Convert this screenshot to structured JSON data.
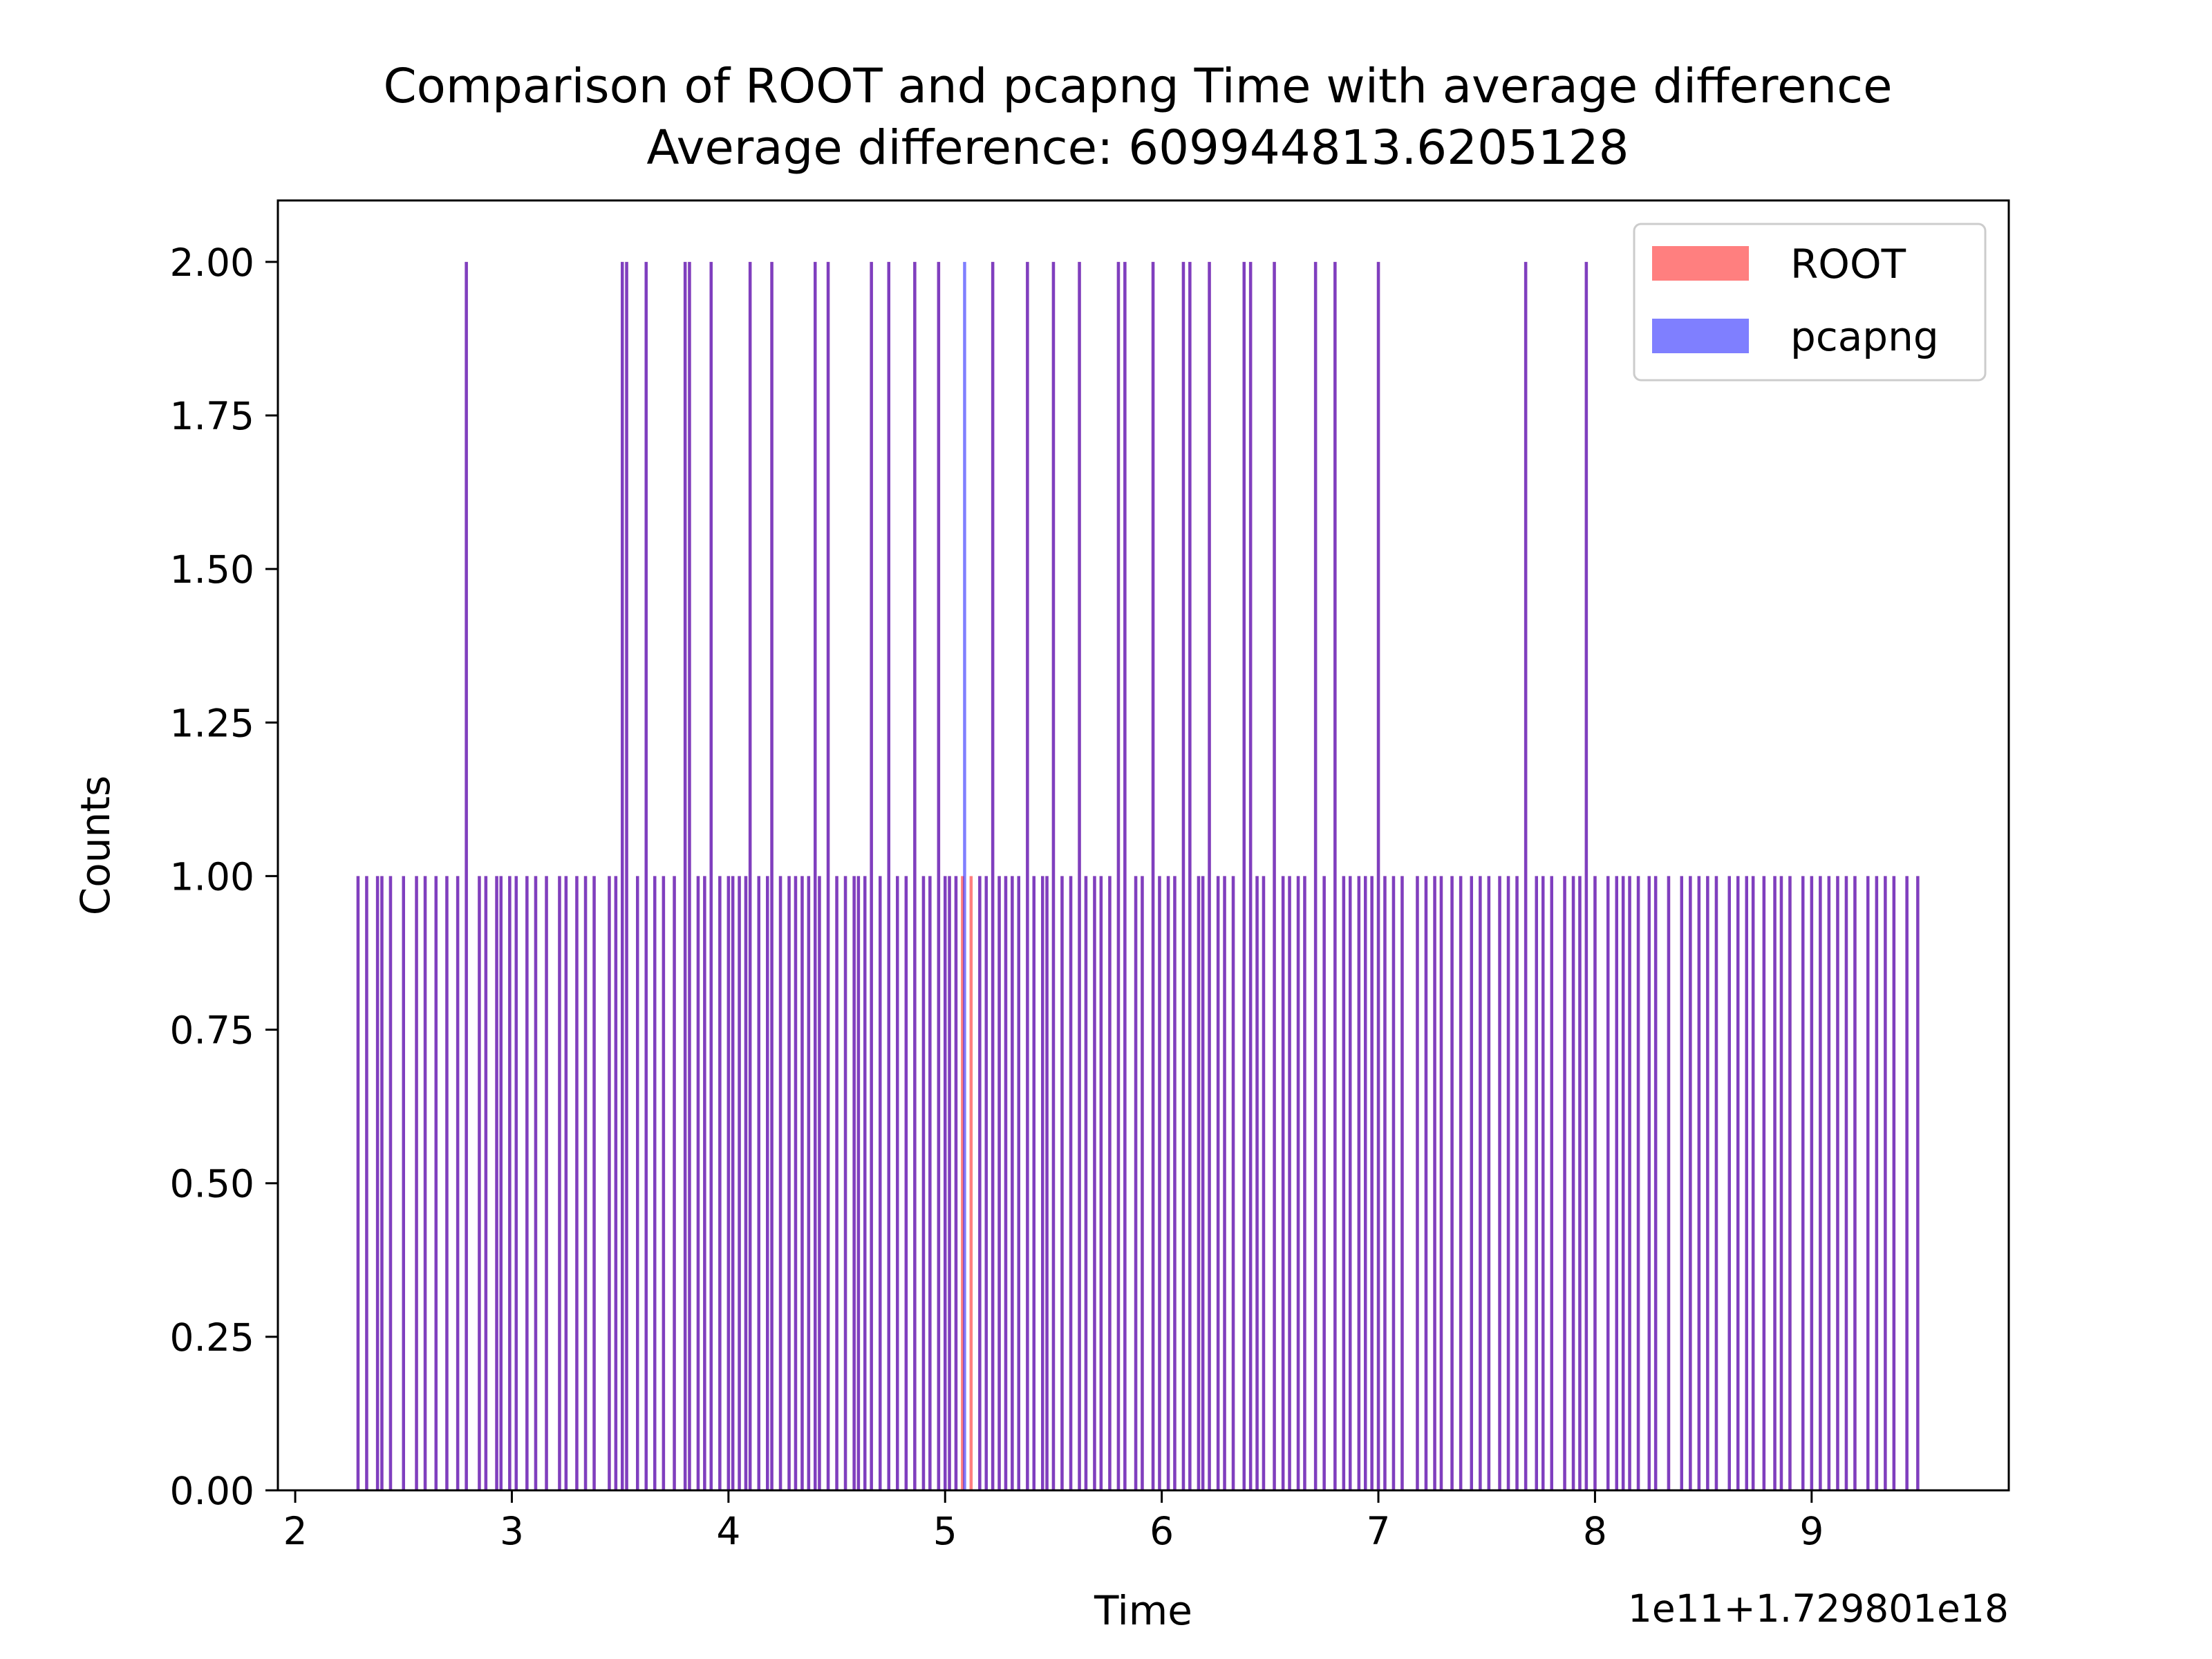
{
  "chart_data": {
    "type": "bar",
    "title": "Comparison of ROOT and pcapng Time with average difference",
    "subtitle": "Average difference: 609944813.6205128",
    "xlabel": "Time",
    "ylabel": "Counts",
    "offset_text": "1e11+1.729801e18",
    "xlim": [
      1.92,
      9.91
    ],
    "ylim": [
      0,
      2.1
    ],
    "xticks": [
      2,
      3,
      4,
      5,
      6,
      7,
      8,
      9
    ],
    "xtick_labels": [
      "2",
      "3",
      "4",
      "5",
      "6",
      "7",
      "8",
      "9"
    ],
    "yticks": [
      0,
      0.25,
      0.5,
      0.75,
      1.0,
      1.25,
      1.5,
      1.75,
      2.0
    ],
    "ytick_labels": [
      "0.00",
      "0.25",
      "0.50",
      "0.75",
      "1.00",
      "1.25",
      "1.50",
      "1.75",
      "2.00"
    ],
    "grid": false,
    "legend_position": "top-right",
    "bin_width": 0.0144,
    "series": [
      {
        "name": "ROOT",
        "color": "#ff0000",
        "alpha": 0.5,
        "bins_count_2": [
          2.79,
          3.51,
          3.53,
          3.62,
          3.8,
          3.82,
          3.92,
          4.1,
          4.2,
          4.4,
          4.46,
          4.66,
          4.74,
          4.86,
          4.97,
          5.22,
          5.38,
          5.5,
          5.62,
          5.8,
          5.83,
          5.96,
          6.1,
          6.13,
          6.22,
          6.38,
          6.41,
          6.52,
          6.71,
          6.8,
          7.0,
          7.68,
          7.96
        ],
        "bins_count_1": [
          2.29,
          2.33,
          2.38,
          2.4,
          2.44,
          2.5,
          2.56,
          2.6,
          2.65,
          2.7,
          2.75,
          2.85,
          2.88,
          2.93,
          2.95,
          2.99,
          3.02,
          3.07,
          3.11,
          3.16,
          3.22,
          3.25,
          3.3,
          3.34,
          3.38,
          3.45,
          3.48,
          3.58,
          3.66,
          3.7,
          3.75,
          3.86,
          3.89,
          3.96,
          4.0,
          4.02,
          4.05,
          4.08,
          4.14,
          4.18,
          4.24,
          4.28,
          4.31,
          4.34,
          4.37,
          4.42,
          4.5,
          4.54,
          4.58,
          4.6,
          4.63,
          4.7,
          4.78,
          4.82,
          4.9,
          4.93,
          5.0,
          5.02,
          5.05,
          5.08,
          5.12,
          5.16,
          5.19,
          5.25,
          5.28,
          5.31,
          5.34,
          5.41,
          5.45,
          5.47,
          5.54,
          5.58,
          5.65,
          5.69,
          5.72,
          5.76,
          5.88,
          5.91,
          5.99,
          6.03,
          6.06,
          6.17,
          6.19,
          6.26,
          6.29,
          6.33,
          6.44,
          6.47,
          6.56,
          6.59,
          6.63,
          6.66,
          6.75,
          6.84,
          6.87,
          6.91,
          6.94,
          6.97,
          7.03,
          7.07,
          7.11,
          7.18,
          7.22,
          7.26,
          7.29,
          7.34,
          7.38,
          7.43,
          7.47,
          7.51,
          7.56,
          7.6,
          7.64,
          7.73,
          7.76,
          7.8,
          7.86,
          7.9,
          7.93,
          8.0,
          8.06,
          8.1,
          8.13,
          8.16,
          8.2,
          8.25,
          8.28,
          8.34,
          8.4,
          8.44,
          8.48,
          8.52,
          8.56,
          8.62,
          8.66,
          8.7,
          8.73,
          8.78,
          8.83,
          8.86,
          8.9,
          8.96,
          9.0,
          9.04,
          9.08,
          9.12,
          9.16,
          9.2,
          9.26,
          9.3,
          9.34,
          9.38,
          9.44,
          9.49
        ]
      },
      {
        "name": "pcapng",
        "color": "#0000ff",
        "alpha": 0.5,
        "bins_count_2": [
          2.79,
          3.51,
          3.53,
          3.62,
          3.8,
          3.82,
          3.92,
          4.1,
          4.2,
          4.4,
          4.46,
          4.66,
          4.74,
          4.86,
          4.97,
          5.09,
          5.22,
          5.38,
          5.5,
          5.62,
          5.8,
          5.83,
          5.96,
          6.1,
          6.13,
          6.22,
          6.38,
          6.41,
          6.52,
          6.71,
          6.8,
          7.0,
          7.68,
          7.96
        ],
        "bins_count_1": [
          2.29,
          2.33,
          2.38,
          2.4,
          2.44,
          2.5,
          2.56,
          2.6,
          2.65,
          2.7,
          2.75,
          2.85,
          2.88,
          2.93,
          2.95,
          2.99,
          3.02,
          3.07,
          3.11,
          3.16,
          3.22,
          3.25,
          3.3,
          3.34,
          3.38,
          3.45,
          3.48,
          3.58,
          3.66,
          3.7,
          3.75,
          3.86,
          3.89,
          3.96,
          4.0,
          4.02,
          4.05,
          4.08,
          4.14,
          4.18,
          4.24,
          4.28,
          4.31,
          4.34,
          4.37,
          4.42,
          4.5,
          4.54,
          4.58,
          4.6,
          4.63,
          4.7,
          4.78,
          4.82,
          4.9,
          4.93,
          5.0,
          5.02,
          5.05,
          5.16,
          5.19,
          5.25,
          5.28,
          5.31,
          5.34,
          5.41,
          5.45,
          5.47,
          5.54,
          5.58,
          5.65,
          5.69,
          5.72,
          5.76,
          5.88,
          5.91,
          5.99,
          6.03,
          6.06,
          6.17,
          6.19,
          6.26,
          6.29,
          6.33,
          6.44,
          6.47,
          6.56,
          6.59,
          6.63,
          6.66,
          6.75,
          6.84,
          6.87,
          6.91,
          6.94,
          6.97,
          7.03,
          7.07,
          7.11,
          7.18,
          7.22,
          7.26,
          7.29,
          7.34,
          7.38,
          7.43,
          7.47,
          7.51,
          7.56,
          7.6,
          7.64,
          7.73,
          7.76,
          7.8,
          7.86,
          7.9,
          7.93,
          8.0,
          8.06,
          8.1,
          8.13,
          8.16,
          8.2,
          8.25,
          8.28,
          8.34,
          8.4,
          8.44,
          8.48,
          8.52,
          8.56,
          8.62,
          8.66,
          8.7,
          8.73,
          8.78,
          8.83,
          8.86,
          8.9,
          8.96,
          9.0,
          9.04,
          9.08,
          9.12,
          9.16,
          9.2,
          9.26,
          9.3,
          9.34,
          9.38,
          9.44,
          9.49
        ]
      }
    ]
  }
}
